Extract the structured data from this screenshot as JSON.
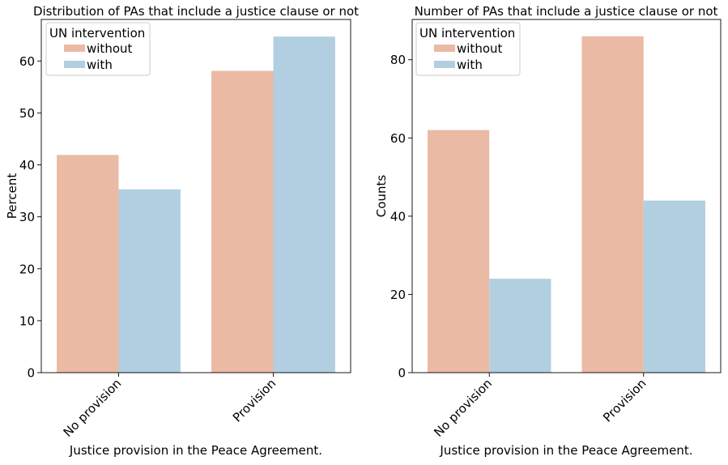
{
  "chart_data": [
    {
      "type": "bar",
      "title": "Distribution of PAs that include a justice clause or not",
      "xlabel": "Justice provision in the Peace Agreement.",
      "ylabel": "Percent",
      "categories": [
        "No provision",
        "Provision"
      ],
      "series": [
        {
          "name": "without",
          "values": [
            41.9,
            58.1
          ]
        },
        {
          "name": "with",
          "values": [
            35.3,
            64.7
          ]
        }
      ],
      "ylim": [
        0,
        68
      ],
      "yticks": [
        0,
        10,
        20,
        30,
        40,
        50,
        60
      ],
      "legend": {
        "title": "UN intervention",
        "placement": "top-left"
      },
      "grid": false
    },
    {
      "type": "bar",
      "title": "Number of PAs that include a justice clause or not",
      "xlabel": "Justice provision in the Peace Agreement.",
      "ylabel": "Counts",
      "categories": [
        "No provision",
        "Provision"
      ],
      "series": [
        {
          "name": "without",
          "values": [
            62,
            86
          ]
        },
        {
          "name": "with",
          "values": [
            24,
            44
          ]
        }
      ],
      "ylim": [
        0,
        90.3
      ],
      "yticks": [
        0,
        20,
        40,
        60,
        80
      ],
      "legend": {
        "title": "UN intervention",
        "placement": "top-left"
      },
      "grid": false
    }
  ],
  "colors": {
    "without": "#eabaa4",
    "with": "#b1cfe0"
  }
}
